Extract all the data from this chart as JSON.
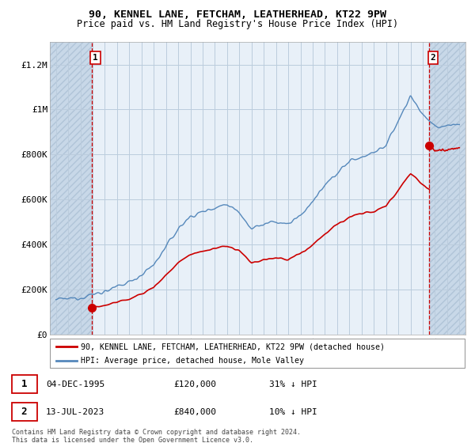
{
  "title1": "90, KENNEL LANE, FETCHAM, LEATHERHEAD, KT22 9PW",
  "title2": "Price paid vs. HM Land Registry's House Price Index (HPI)",
  "ylabel_ticks": [
    "£0",
    "£200K",
    "£400K",
    "£600K",
    "£800K",
    "£1M",
    "£1.2M"
  ],
  "ytick_values": [
    0,
    200000,
    400000,
    600000,
    800000,
    1000000,
    1200000
  ],
  "ylim": [
    0,
    1300000
  ],
  "xlim_start": 1992.5,
  "xlim_end": 2026.5,
  "purchase1_x": 1995.92,
  "purchase1_y": 120000,
  "purchase2_x": 2023.54,
  "purchase2_y": 840000,
  "purchase_color": "#cc0000",
  "hpi_color": "#5588bb",
  "hpi_fill_color": "#ddeeff",
  "bg_color": "#e8f0f8",
  "hatch_color": "#c8d8e8",
  "legend_label1": "90, KENNEL LANE, FETCHAM, LEATHERHEAD, KT22 9PW (detached house)",
  "legend_label2": "HPI: Average price, detached house, Mole Valley",
  "annotation1_label": "1",
  "annotation2_label": "2",
  "table_row1": [
    "1",
    "04-DEC-1995",
    "£120,000",
    "31% ↓ HPI"
  ],
  "table_row2": [
    "2",
    "13-JUL-2023",
    "£840,000",
    "10% ↓ HPI"
  ],
  "footnote": "Contains HM Land Registry data © Crown copyright and database right 2024.\nThis data is licensed under the Open Government Licence v3.0.",
  "grid_color": "#bbccdd"
}
